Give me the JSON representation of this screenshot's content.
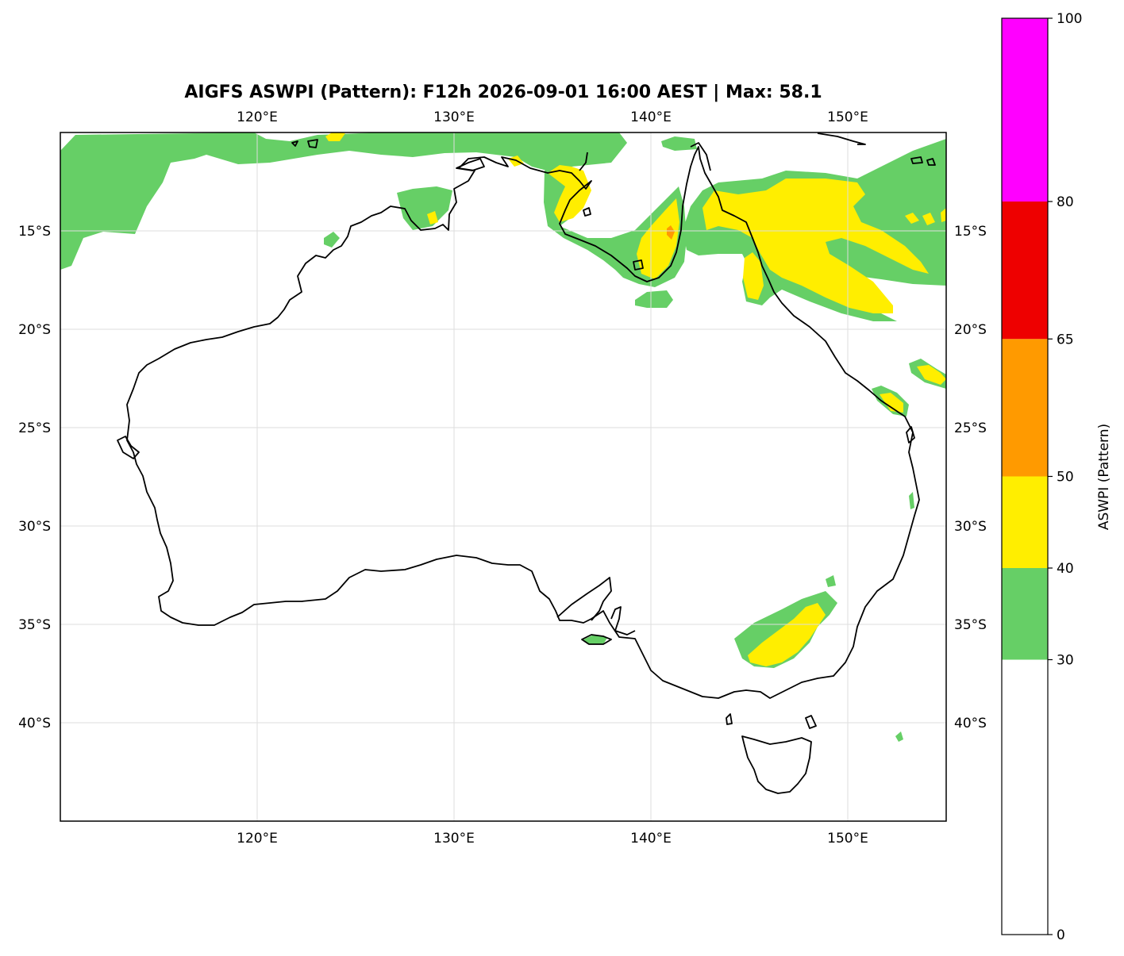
{
  "title": "AIGFS ASWPI (Pattern): F12h 2026-09-01 16:00 AEST | Max: 58.1",
  "map": {
    "lon_range": [
      110,
      155
    ],
    "lat_range": [
      -45,
      -10
    ],
    "lon_ticks": [
      {
        "value": 120,
        "label": "120°E"
      },
      {
        "value": 130,
        "label": "130°E"
      },
      {
        "value": 140,
        "label": "140°E"
      },
      {
        "value": 150,
        "label": "150°E"
      }
    ],
    "lat_ticks": [
      {
        "value": -15,
        "label": "15°S"
      },
      {
        "value": -20,
        "label": "20°S"
      },
      {
        "value": -25,
        "label": "25°S"
      },
      {
        "value": -30,
        "label": "30°S"
      },
      {
        "value": -35,
        "label": "35°S"
      },
      {
        "value": -40,
        "label": "40°S"
      }
    ],
    "grid": true
  },
  "colorbar": {
    "label": "ASWPI (Pattern)",
    "vmin": 0,
    "vmax": 100,
    "ticks": [
      {
        "value": 0,
        "label": "0"
      },
      {
        "value": 30,
        "label": "30"
      },
      {
        "value": 40,
        "label": "40"
      },
      {
        "value": 50,
        "label": "50"
      },
      {
        "value": 65,
        "label": "65"
      },
      {
        "value": 80,
        "label": "80"
      },
      {
        "value": 100,
        "label": "100"
      }
    ],
    "bands": [
      {
        "from": 0,
        "to": 30,
        "color": "#ffffff"
      },
      {
        "from": 30,
        "to": 40,
        "color": "#66cf66"
      },
      {
        "from": 40,
        "to": 50,
        "color": "#ffee00"
      },
      {
        "from": 50,
        "to": 65,
        "color": "#ff9a00"
      },
      {
        "from": 65,
        "to": 80,
        "color": "#ee0000"
      },
      {
        "from": 80,
        "to": 100,
        "color": "#ff00ff"
      }
    ]
  },
  "colors": {
    "green": "#66cf66",
    "yellow": "#ffee00",
    "orange": "#ff9a00",
    "coast": "#000000",
    "grid": "#dddddd"
  },
  "max_value": 58.1
}
